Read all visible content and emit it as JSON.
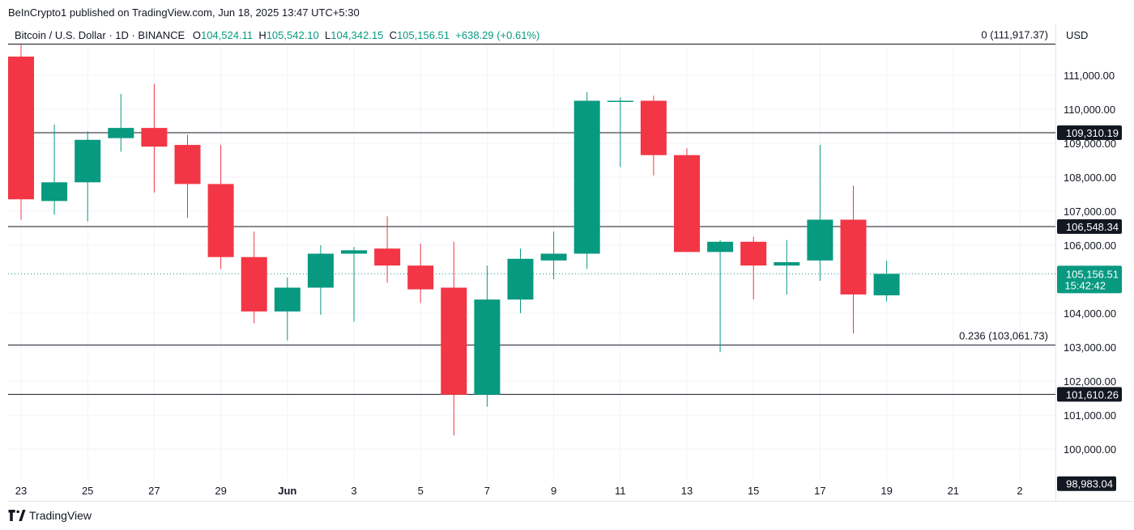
{
  "header": {
    "published": "BeInCrypto1 published on TradingView.com, Jun 18, 2025 13:47 UTC+5:30"
  },
  "legend": {
    "symbol": "Bitcoin / U.S. Dollar · 1D · BINANCE",
    "o_label": "O",
    "o_value": "104,524.11",
    "h_label": "H",
    "h_value": "105,542.10",
    "l_label": "L",
    "l_value": "104,342.15",
    "c_label": "C",
    "c_value": "105,156.51",
    "change": "+638.29 (+0.61%)"
  },
  "currency": "USD",
  "brand": "TradingView",
  "colors": {
    "up": "#089981",
    "down": "#f23645",
    "line": "#131722"
  },
  "chart_data": {
    "type": "candlestick",
    "x_tick_labels": [
      "23",
      "25",
      "27",
      "29",
      "Jun",
      "3",
      "5",
      "7",
      "9",
      "11",
      "13",
      "15",
      "17",
      "19",
      "21",
      "2"
    ],
    "y_tick_labels": [
      "111,000.00",
      "110,000.00",
      "109,000.00",
      "108,000.00",
      "107,000.00",
      "106,000.00",
      "104,000.00",
      "103,000.00",
      "102,000.00",
      "101,000.00",
      "100,000.00"
    ],
    "ylim": [
      98800,
      112300
    ],
    "candles": [
      {
        "date": "May 23",
        "o": 111550,
        "h": 111900,
        "l": 106750,
        "c": 107350
      },
      {
        "date": "May 24",
        "o": 107300,
        "h": 109550,
        "l": 106900,
        "c": 107850
      },
      {
        "date": "May 25",
        "o": 107850,
        "h": 109350,
        "l": 106700,
        "c": 109100
      },
      {
        "date": "May 26",
        "o": 109150,
        "h": 110450,
        "l": 108750,
        "c": 109450
      },
      {
        "date": "May 27",
        "o": 109450,
        "h": 110750,
        "l": 107550,
        "c": 108900
      },
      {
        "date": "May 28",
        "o": 108950,
        "h": 109250,
        "l": 106800,
        "c": 107800
      },
      {
        "date": "May 29",
        "o": 107800,
        "h": 108950,
        "l": 105300,
        "c": 105650
      },
      {
        "date": "May 30",
        "o": 105650,
        "h": 106400,
        "l": 103700,
        "c": 104050
      },
      {
        "date": "May 31",
        "o": 104050,
        "h": 105050,
        "l": 103200,
        "c": 104750
      },
      {
        "date": "Jun 1",
        "o": 104750,
        "h": 106000,
        "l": 103950,
        "c": 105750
      },
      {
        "date": "Jun 2",
        "o": 105750,
        "h": 105950,
        "l": 103750,
        "c": 105850
      },
      {
        "date": "Jun 3",
        "o": 105900,
        "h": 106850,
        "l": 104900,
        "c": 105400
      },
      {
        "date": "Jun 4",
        "o": 105400,
        "h": 106050,
        "l": 104300,
        "c": 104700
      },
      {
        "date": "Jun 5",
        "o": 104750,
        "h": 106100,
        "l": 100400,
        "c": 101600
      },
      {
        "date": "Jun 6",
        "o": 101600,
        "h": 105400,
        "l": 101250,
        "c": 104400
      },
      {
        "date": "Jun 7",
        "o": 104400,
        "h": 105900,
        "l": 104000,
        "c": 105600
      },
      {
        "date": "Jun 8",
        "o": 105550,
        "h": 106400,
        "l": 105000,
        "c": 105750
      },
      {
        "date": "Jun 9",
        "o": 105750,
        "h": 110500,
        "l": 105300,
        "c": 110250
      },
      {
        "date": "Jun 10",
        "o": 110250,
        "h": 110350,
        "l": 108300,
        "c": 110250
      },
      {
        "date": "Jun 11",
        "o": 110250,
        "h": 110400,
        "l": 108050,
        "c": 108650
      },
      {
        "date": "Jun 12",
        "o": 108650,
        "h": 108850,
        "l": 105800,
        "c": 105800
      },
      {
        "date": "Jun 13",
        "o": 105800,
        "h": 106150,
        "l": 102850,
        "c": 106100
      },
      {
        "date": "Jun 14",
        "o": 106100,
        "h": 106250,
        "l": 104400,
        "c": 105400
      },
      {
        "date": "Jun 15",
        "o": 105400,
        "h": 106150,
        "l": 104550,
        "c": 105500
      },
      {
        "date": "Jun 16",
        "o": 105550,
        "h": 108950,
        "l": 104950,
        "c": 106750
      },
      {
        "date": "Jun 17",
        "o": 106750,
        "h": 107750,
        "l": 103400,
        "c": 104550
      },
      {
        "date": "Jun 18",
        "o": 104524.11,
        "h": 105542.1,
        "l": 104342.15,
        "c": 105156.51
      }
    ],
    "levels": [
      {
        "value": 111917.37,
        "label": "0 (111,917.37)",
        "tag": ""
      },
      {
        "value": 109310.19,
        "label": "",
        "tag": "109,310.19"
      },
      {
        "value": 106548.34,
        "label": "",
        "tag": "106,548.34"
      },
      {
        "value": 103061.73,
        "label": "0.236 (103,061.73)",
        "tag": ""
      },
      {
        "value": 101610.26,
        "label": "",
        "tag": "101,610.26"
      }
    ],
    "current": {
      "value": 105156.51,
      "price_label": "105,156.51",
      "countdown": "15:42:42"
    },
    "bottom_tag": {
      "value": 98983.04,
      "label": "98,983.04"
    }
  }
}
